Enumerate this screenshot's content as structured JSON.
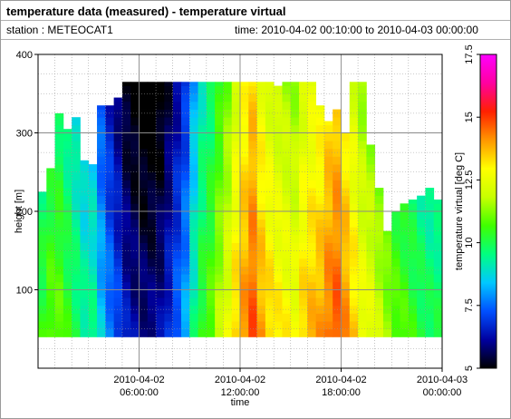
{
  "window": {
    "title": "temperature data (measured) - temperature virtual",
    "station": "station : METEOCAT1",
    "time_range": "time: 2010-04-02 00:10:00 to 2010-04-03 00:00:00"
  },
  "chart_data": {
    "type": "heatmap",
    "title": "temperature data (measured) - temperature virtual",
    "xlabel": "time",
    "ylabel": "height [m]",
    "colorbar_label": "temperature virtual [deg C]",
    "x_range_hours": [
      0,
      24
    ],
    "x_ticks": [
      {
        "hour": 6,
        "line1": "2010-04-02",
        "line2": "06:00:00"
      },
      {
        "hour": 12,
        "line1": "2010-04-02",
        "line2": "12:00:00"
      },
      {
        "hour": 18,
        "line1": "2010-04-02",
        "line2": "18:00:00"
      },
      {
        "hour": 24,
        "line1": "2010-04-03",
        "line2": "00:00:00"
      }
    ],
    "ylim": [
      0,
      400
    ],
    "y_ticks": [
      100,
      200,
      300,
      400
    ],
    "zlim": [
      5,
      17.5
    ],
    "colorbar_ticks": [
      "5",
      "7.5",
      "10",
      "12.5",
      "15",
      "17.5"
    ],
    "colorbar_tick_values": [
      5,
      7.5,
      10,
      12.5,
      15,
      17.5
    ],
    "grid": true,
    "colormap": [
      "#000000",
      "#0000a0",
      "#0050ff",
      "#00c8ff",
      "#00ff80",
      "#40ff00",
      "#c8ff00",
      "#ffff00",
      "#ff9600",
      "#ff2000",
      "#ff00a0",
      "#ff00ff"
    ],
    "data_min_height": 40,
    "hours": [
      0.0,
      0.5,
      1.0,
      1.5,
      2.0,
      2.5,
      3.0,
      3.5,
      4.0,
      4.5,
      5.0,
      5.5,
      6.0,
      6.5,
      7.0,
      7.5,
      8.0,
      8.5,
      9.0,
      9.5,
      10.0,
      10.5,
      11.0,
      11.5,
      12.0,
      12.5,
      13.0,
      13.5,
      14.0,
      14.5,
      15.0,
      15.5,
      16.0,
      16.5,
      17.0,
      17.5,
      18.0,
      18.5,
      19.0,
      19.5,
      20.0,
      20.5,
      21.0,
      21.5,
      22.0,
      22.5,
      23.0,
      23.5
    ],
    "max_height_m": [
      225,
      255,
      325,
      305,
      320,
      265,
      260,
      335,
      335,
      345,
      365,
      365,
      365,
      365,
      365,
      365,
      365,
      365,
      365,
      365,
      365,
      365,
      365,
      365,
      365,
      365,
      365,
      365,
      360,
      365,
      365,
      365,
      365,
      335,
      315,
      330,
      300,
      365,
      365,
      285,
      230,
      175,
      200,
      210,
      215,
      220,
      230,
      215
    ],
    "surface_temp": [
      10.5,
      11.0,
      11.0,
      10.5,
      10.0,
      9.5,
      9.5,
      8.5,
      7.8,
      7.2,
      6.5,
      6.2,
      6.0,
      6.0,
      6.2,
      6.8,
      7.5,
      8.2,
      9.5,
      10.5,
      11.0,
      11.8,
      12.5,
      13.5,
      14.2,
      14.8,
      14.0,
      13.5,
      13.2,
      13.0,
      12.8,
      13.5,
      13.8,
      14.0,
      14.5,
      14.8,
      14.2,
      13.5,
      12.8,
      12.5,
      12.0,
      11.5,
      11.0,
      10.8,
      10.5,
      10.2,
      10.0,
      10.0
    ]
  }
}
